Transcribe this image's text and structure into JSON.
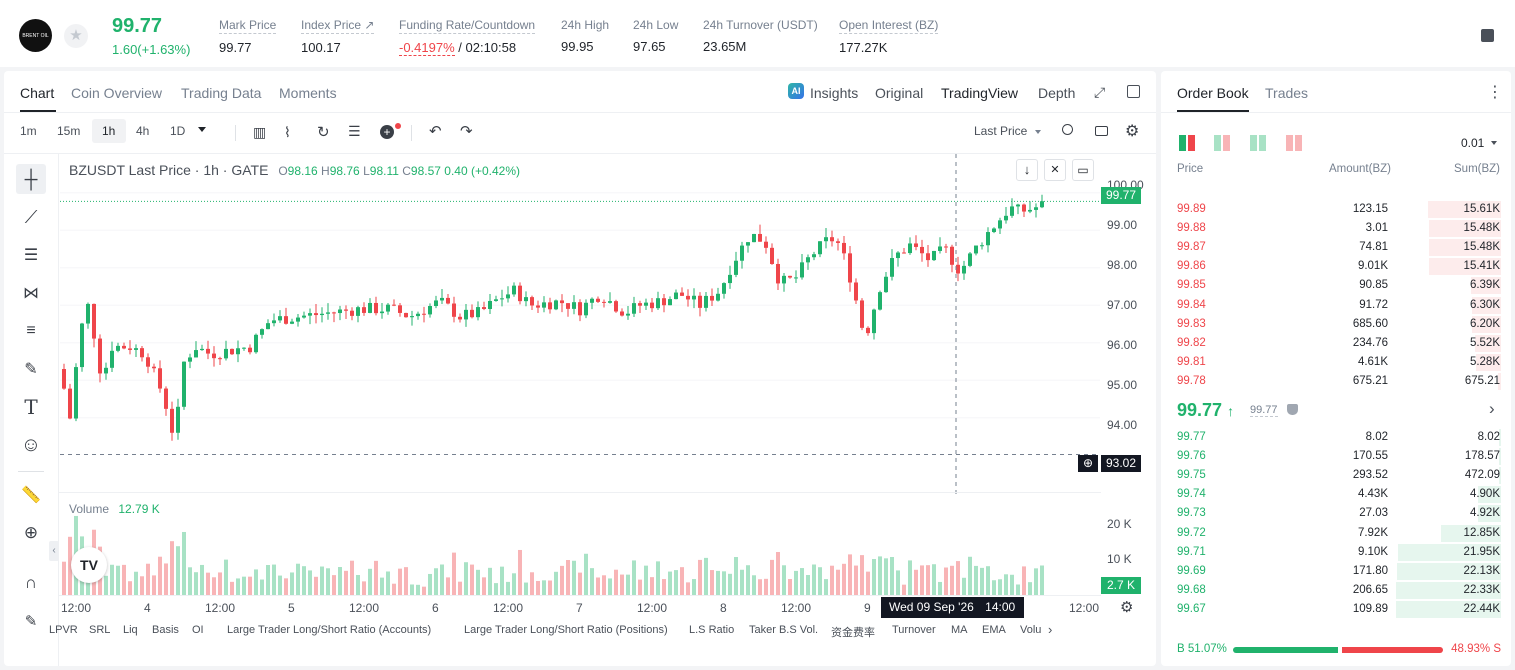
{
  "header": {
    "last_price": "99.77",
    "change": "1.60(+1.63%)",
    "stats": [
      {
        "label": "Mark Price",
        "value": "99.77"
      },
      {
        "label": "Index Price ↗",
        "value": "100.17"
      },
      {
        "label": "Funding Rate/Countdown",
        "value_neg": "-0.4197%",
        "value_rest": "/ 02:10:58"
      },
      {
        "label": "24h High",
        "value": "99.95"
      },
      {
        "label": "24h Low",
        "value": "97.65"
      },
      {
        "label": "24h Turnover (USDT)",
        "value": "23.65M"
      },
      {
        "label": "Open Interest (BZ)",
        "value": "177.27K"
      }
    ],
    "logo_text": "BRENT OIL"
  },
  "chart_tabs": [
    "Chart",
    "Coin Overview",
    "Trading Data",
    "Moments"
  ],
  "view_tabs": {
    "insights": "Insights",
    "original": "Original",
    "tradingview": "TradingView",
    "depth": "Depth"
  },
  "intervals": [
    "1m",
    "15m",
    "1h",
    "4h",
    "1D"
  ],
  "price_type": "Last Price",
  "legend": {
    "title": "BZUSDT Last Price · 1h · GATE",
    "o_label": "O",
    "o": "98.16",
    "h_label": "H",
    "h": "98.76",
    "l_label": "L",
    "l": "98.11",
    "c_label": "C",
    "c": "98.57",
    "chg": "0.40 (+0.42%)"
  },
  "volume_label": "Volume",
  "volume_value": "12.79 K",
  "price_tag": "99.77",
  "crosshair_price": "93.02",
  "crosshair_time": "Wed 09 Sep '26",
  "crosshair_hour": "14:00",
  "vol_tag": "2.7 K",
  "y_ticks": [
    "100.00",
    "99.00",
    "98.00",
    "97.00",
    "96.00",
    "95.00",
    "94.00"
  ],
  "vol_ticks": [
    "20 K",
    "10 K"
  ],
  "x_ticks": [
    "12:00",
    "4",
    "12:00",
    "5",
    "12:00",
    "6",
    "12:00",
    "7",
    "12:00",
    "8",
    "12:00",
    "9",
    "12:00"
  ],
  "indicators": [
    "LPVR",
    "SRL",
    "Liq",
    "Basis",
    "OI",
    "Large Trader Long/Short Ratio (Accounts)",
    "Large Trader Long/Short Ratio (Positions)",
    "L.S Ratio",
    "Taker B.S Vol.",
    "资金费率",
    "Turnover",
    "MA",
    "EMA",
    "Volu"
  ],
  "tv_logo": "TV",
  "orderbook": {
    "tabs": [
      "Order Book",
      "Trades"
    ],
    "precision": "0.01",
    "headers": [
      "Price",
      "Amount(BZ)",
      "Sum(BZ)"
    ],
    "asks": [
      {
        "price": "99.89",
        "amount": "123.15",
        "sum": "15.61K",
        "depth": 0.7
      },
      {
        "price": "99.88",
        "amount": "3.01",
        "sum": "15.48K",
        "depth": 0.69
      },
      {
        "price": "99.87",
        "amount": "74.81",
        "sum": "15.48K",
        "depth": 0.69
      },
      {
        "price": "99.86",
        "amount": "9.01K",
        "sum": "15.41K",
        "depth": 0.69
      },
      {
        "price": "99.85",
        "amount": "90.85",
        "sum": "6.39K",
        "depth": 0.29
      },
      {
        "price": "99.84",
        "amount": "91.72",
        "sum": "6.30K",
        "depth": 0.28
      },
      {
        "price": "99.83",
        "amount": "685.60",
        "sum": "6.20K",
        "depth": 0.28
      },
      {
        "price": "99.82",
        "amount": "234.76",
        "sum": "5.52K",
        "depth": 0.25
      },
      {
        "price": "99.81",
        "amount": "4.61K",
        "sum": "5.28K",
        "depth": 0.24
      },
      {
        "price": "99.78",
        "amount": "675.21",
        "sum": "675.21",
        "depth": 0.03
      }
    ],
    "mid_price": "99.77",
    "mid_mark": "99.77",
    "bids": [
      {
        "price": "99.77",
        "amount": "8.02",
        "sum": "8.02",
        "depth": 0.0
      },
      {
        "price": "99.76",
        "amount": "170.55",
        "sum": "178.57",
        "depth": 0.01
      },
      {
        "price": "99.75",
        "amount": "293.52",
        "sum": "472.09",
        "depth": 0.02
      },
      {
        "price": "99.74",
        "amount": "4.43K",
        "sum": "4.90K",
        "depth": 0.22
      },
      {
        "price": "99.73",
        "amount": "27.03",
        "sum": "4.92K",
        "depth": 0.22
      },
      {
        "price": "99.72",
        "amount": "7.92K",
        "sum": "12.85K",
        "depth": 0.57
      },
      {
        "price": "99.71",
        "amount": "9.10K",
        "sum": "21.95K",
        "depth": 0.98
      },
      {
        "price": "99.69",
        "amount": "171.80",
        "sum": "22.13K",
        "depth": 0.99
      },
      {
        "price": "99.68",
        "amount": "206.65",
        "sum": "22.33K",
        "depth": 1.0
      },
      {
        "price": "99.67",
        "amount": "109.89",
        "sum": "22.44K",
        "depth": 1.0
      }
    ],
    "buy_pct": "B 51.07%",
    "sell_pct": "48.93% S",
    "buy_ratio": 0.5107
  },
  "colors": {
    "up": "#20b26c",
    "down": "#ef454a",
    "accent": "#1f2329"
  }
}
